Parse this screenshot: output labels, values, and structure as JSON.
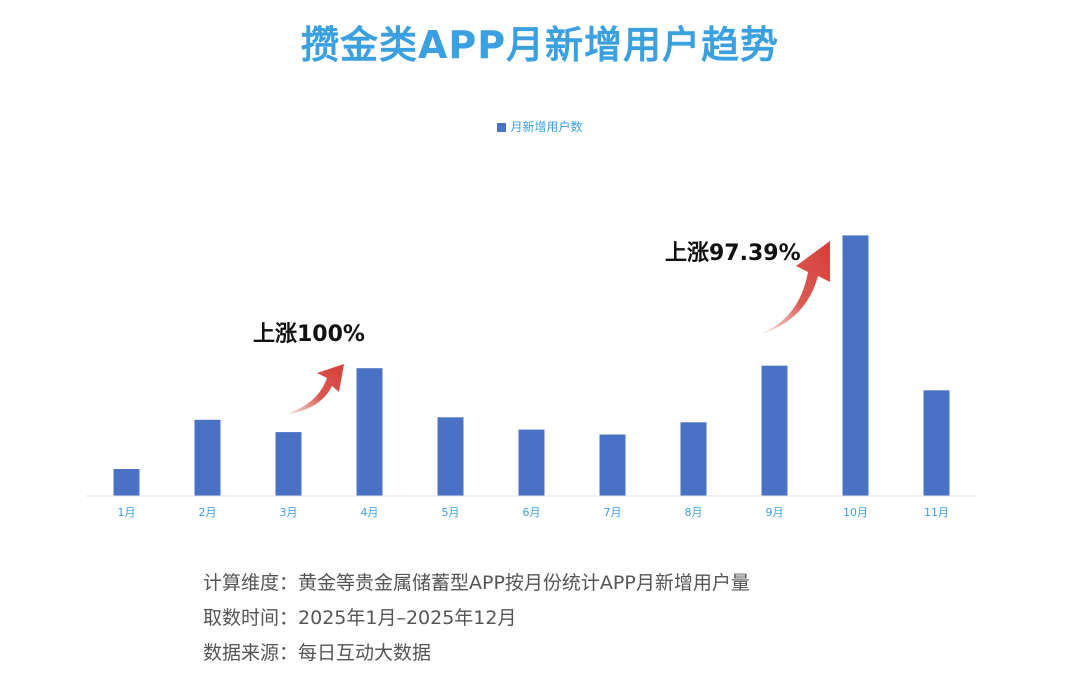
{
  "title": "攒金类APP月新增用户趋势",
  "chart_data": {
    "type": "bar",
    "categories": [
      "1月",
      "2月",
      "3月",
      "4月",
      "5月",
      "6月",
      "7月",
      "8月",
      "9月",
      "10月",
      "11月"
    ],
    "series": [
      {
        "name": "月新增用户数",
        "values": [
          11,
          31,
          26,
          52,
          32,
          27,
          25,
          30,
          53,
          106,
          43
        ]
      }
    ],
    "ylim": [
      0,
      120
    ],
    "grid": false,
    "legend": "top-center",
    "colors": {
      "bar": "#4a72c4",
      "arrow": "#d9534f",
      "axis_text": "#3aa0e0"
    },
    "annotations": [
      {
        "text": "上涨100%",
        "from": "3月",
        "to": "4月"
      },
      {
        "text": "上涨97.39%",
        "from": "9月",
        "to": "10月"
      }
    ]
  },
  "notes": [
    {
      "label": "计算维度：",
      "text": "黄金等贵金属储蓄型APP按月份统计APP月新增用户量"
    },
    {
      "label": "取数时间：",
      "text": "2025年1月–2025年12月"
    },
    {
      "label": "数据来源：",
      "text": "每日互动大数据"
    }
  ]
}
